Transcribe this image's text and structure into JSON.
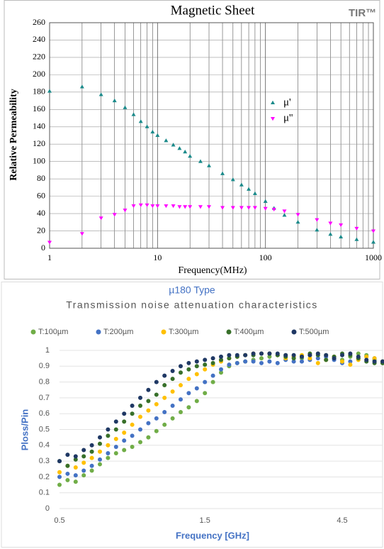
{
  "chart_data": [
    {
      "type": "scatter",
      "title": "Magnetic Sheet",
      "badge": "TIR™",
      "x_label": "Frequency(MHz)",
      "y_label": "Relative Permeability",
      "xscale": "log",
      "xlim": [
        1,
        1000
      ],
      "xticks": [
        1,
        10,
        100,
        1000
      ],
      "ylim": [
        0,
        260
      ],
      "yticks": [
        0,
        20,
        40,
        60,
        80,
        100,
        120,
        140,
        160,
        180,
        200,
        220,
        240,
        260
      ],
      "grid": true,
      "legend": "right",
      "x": [
        1,
        2,
        3,
        4,
        5,
        6,
        7,
        8,
        9,
        10,
        12,
        14,
        16,
        18,
        20,
        25,
        30,
        40,
        50,
        60,
        70,
        80,
        100,
        120,
        150,
        200,
        300,
        400,
        500,
        700,
        1000
      ],
      "series": [
        {
          "name": "μ'",
          "color": "#1a8a8a",
          "marker": "triangle-up",
          "values": [
            181,
            186,
            177,
            170,
            162,
            154,
            146,
            140,
            134,
            130,
            124,
            119,
            115,
            111,
            106,
            100,
            95,
            86,
            79,
            73,
            68,
            63,
            54,
            46,
            38,
            30,
            21,
            16,
            13,
            10,
            7
          ]
        },
        {
          "name": "μ''",
          "color": "#ff00ff",
          "marker": "triangle-down",
          "values": [
            7,
            17,
            35,
            39,
            44,
            49,
            50,
            50,
            49,
            49,
            49,
            49,
            48,
            48,
            48,
            48,
            48,
            47,
            47,
            47,
            47,
            47,
            46,
            45,
            43,
            39,
            33,
            29,
            27,
            23,
            20
          ]
        }
      ]
    },
    {
      "type": "line",
      "title": "µ180 Type",
      "subtitle": "Transmission noise attenuation characteristics",
      "x_label": "Frequency [GHz]",
      "y_label": "Ploss/Pin",
      "ylim": [
        0,
        1
      ],
      "yticks": [
        0,
        0.1,
        0.2,
        0.3,
        0.4,
        0.5,
        0.6,
        0.7,
        0.8,
        0.9,
        1
      ],
      "grid": true,
      "legend": "top",
      "marker": "circle",
      "categories": [
        "0.5",
        null,
        null,
        null,
        null,
        null,
        null,
        null,
        null,
        null,
        null,
        null,
        null,
        null,
        null,
        null,
        null,
        null,
        "1.5",
        null,
        null,
        null,
        null,
        null,
        null,
        null,
        null,
        null,
        null,
        null,
        null,
        null,
        null,
        null,
        null,
        "4.5",
        null,
        null,
        null,
        null,
        null
      ],
      "series": [
        {
          "name": "T:100µm",
          "color": "#70ad47",
          "values": [
            0.15,
            0.18,
            0.17,
            0.21,
            0.24,
            0.28,
            0.32,
            0.35,
            0.37,
            0.39,
            0.42,
            0.45,
            0.49,
            0.53,
            0.57,
            0.61,
            0.64,
            0.68,
            0.73,
            0.8,
            0.86,
            0.9,
            0.92,
            0.93,
            0.94,
            0.95,
            0.96,
            0.97,
            0.97,
            0.96,
            0.95,
            0.97,
            0.98,
            0.97,
            0.95,
            0.94,
            0.96,
            0.98,
            0.97,
            0.94,
            0.92
          ]
        },
        {
          "name": "T:200µm",
          "color": "#4472c4",
          "values": [
            0.2,
            0.22,
            0.21,
            0.24,
            0.27,
            0.31,
            0.35,
            0.39,
            0.43,
            0.46,
            0.5,
            0.54,
            0.57,
            0.61,
            0.65,
            0.69,
            0.73,
            0.76,
            0.8,
            0.84,
            0.88,
            0.91,
            0.92,
            0.93,
            0.93,
            0.92,
            0.93,
            0.92,
            0.94,
            0.93,
            0.93,
            0.94,
            0.95,
            0.96,
            0.94,
            0.92,
            0.93,
            0.95,
            0.96,
            0.95,
            0.93
          ]
        },
        {
          "name": "T:300µm",
          "color": "#ffc000",
          "values": [
            0.23,
            0.27,
            0.26,
            0.29,
            0.32,
            0.36,
            0.4,
            0.44,
            0.48,
            0.53,
            0.58,
            0.62,
            0.66,
            0.7,
            0.74,
            0.78,
            0.82,
            0.85,
            0.88,
            0.91,
            0.93,
            0.95,
            0.96,
            0.97,
            0.98,
            0.98,
            0.98,
            0.97,
            0.95,
            0.96,
            0.97,
            0.95,
            0.92,
            0.94,
            0.96,
            0.93,
            0.91,
            0.94,
            0.96,
            0.95,
            0.93
          ]
        },
        {
          "name": "T:400µm",
          "color": "#38702a",
          "values": [
            0.3,
            0.27,
            0.31,
            0.33,
            0.36,
            0.41,
            0.46,
            0.5,
            0.55,
            0.6,
            0.65,
            0.68,
            0.72,
            0.78,
            0.82,
            0.86,
            0.88,
            0.9,
            0.91,
            0.92,
            0.94,
            0.95,
            0.96,
            0.97,
            0.97,
            0.98,
            0.98,
            0.97,
            0.96,
            0.95,
            0.96,
            0.98,
            0.97,
            0.94,
            0.96,
            0.98,
            0.97,
            0.95,
            0.93,
            0.92,
            0.92
          ]
        },
        {
          "name": "T:500µm",
          "color": "#1f3864",
          "values": [
            0.3,
            0.34,
            0.33,
            0.37,
            0.4,
            0.45,
            0.5,
            0.55,
            0.6,
            0.65,
            0.7,
            0.75,
            0.8,
            0.84,
            0.87,
            0.9,
            0.92,
            0.93,
            0.94,
            0.95,
            0.96,
            0.97,
            0.97,
            0.97,
            0.98,
            0.98,
            0.98,
            0.98,
            0.97,
            0.97,
            0.96,
            0.97,
            0.98,
            0.97,
            0.95,
            0.97,
            0.98,
            0.96,
            0.94,
            0.93,
            0.93
          ]
        }
      ]
    }
  ]
}
